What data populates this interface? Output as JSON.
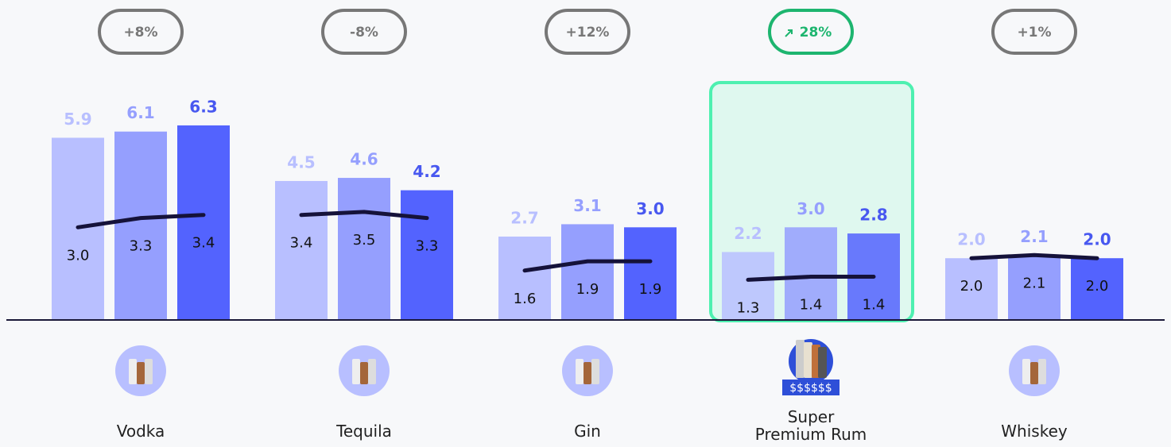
{
  "chart_data": {
    "type": "bar",
    "categories": [
      "Vodka",
      "Tequila",
      "Gin",
      "Super Premium Rum",
      "Whiskey"
    ],
    "series": [
      {
        "color": "#b8bfff",
        "label_color": "#b8bfff",
        "values": [
          5.9,
          4.5,
          2.7,
          2.2,
          2.0
        ],
        "value_labels": [
          "5.9",
          "4.5",
          "2.7",
          "2.2",
          "2.0"
        ]
      },
      {
        "color": "#959ffe",
        "label_color": "#959ffe",
        "values": [
          6.1,
          4.6,
          3.1,
          3.0,
          2.1
        ],
        "value_labels": [
          "6.1",
          "4.6",
          "3.1",
          "3.0",
          "2.1"
        ]
      },
      {
        "color": "#5363fe",
        "label_color": "#4858f0",
        "values": [
          6.3,
          4.2,
          3.0,
          2.8,
          2.0
        ],
        "value_labels": [
          "6.3",
          "4.2",
          "3.0",
          "2.8",
          "2.0"
        ]
      }
    ],
    "line": {
      "color": "#15123a",
      "values": [
        [
          3.0,
          3.3,
          3.4
        ],
        [
          3.4,
          3.5,
          3.3
        ],
        [
          1.6,
          1.9,
          1.9
        ],
        [
          1.3,
          1.4,
          1.4
        ],
        [
          2.0,
          2.1,
          2.0
        ]
      ],
      "value_labels": [
        [
          "3.0",
          "3.3",
          "3.4"
        ],
        [
          "3.4",
          "3.5",
          "3.3"
        ],
        [
          "1.6",
          "1.9",
          "1.9"
        ],
        [
          "1.3",
          "1.4",
          "1.4"
        ],
        [
          "2.0",
          "2.1",
          "2.0"
        ]
      ]
    },
    "changes": [
      "+8%",
      "-8%",
      "+12%",
      "28%",
      "+1%"
    ],
    "highlight": 3,
    "price_tag": "$$$$$$",
    "ylim": [
      0,
      7
    ]
  }
}
